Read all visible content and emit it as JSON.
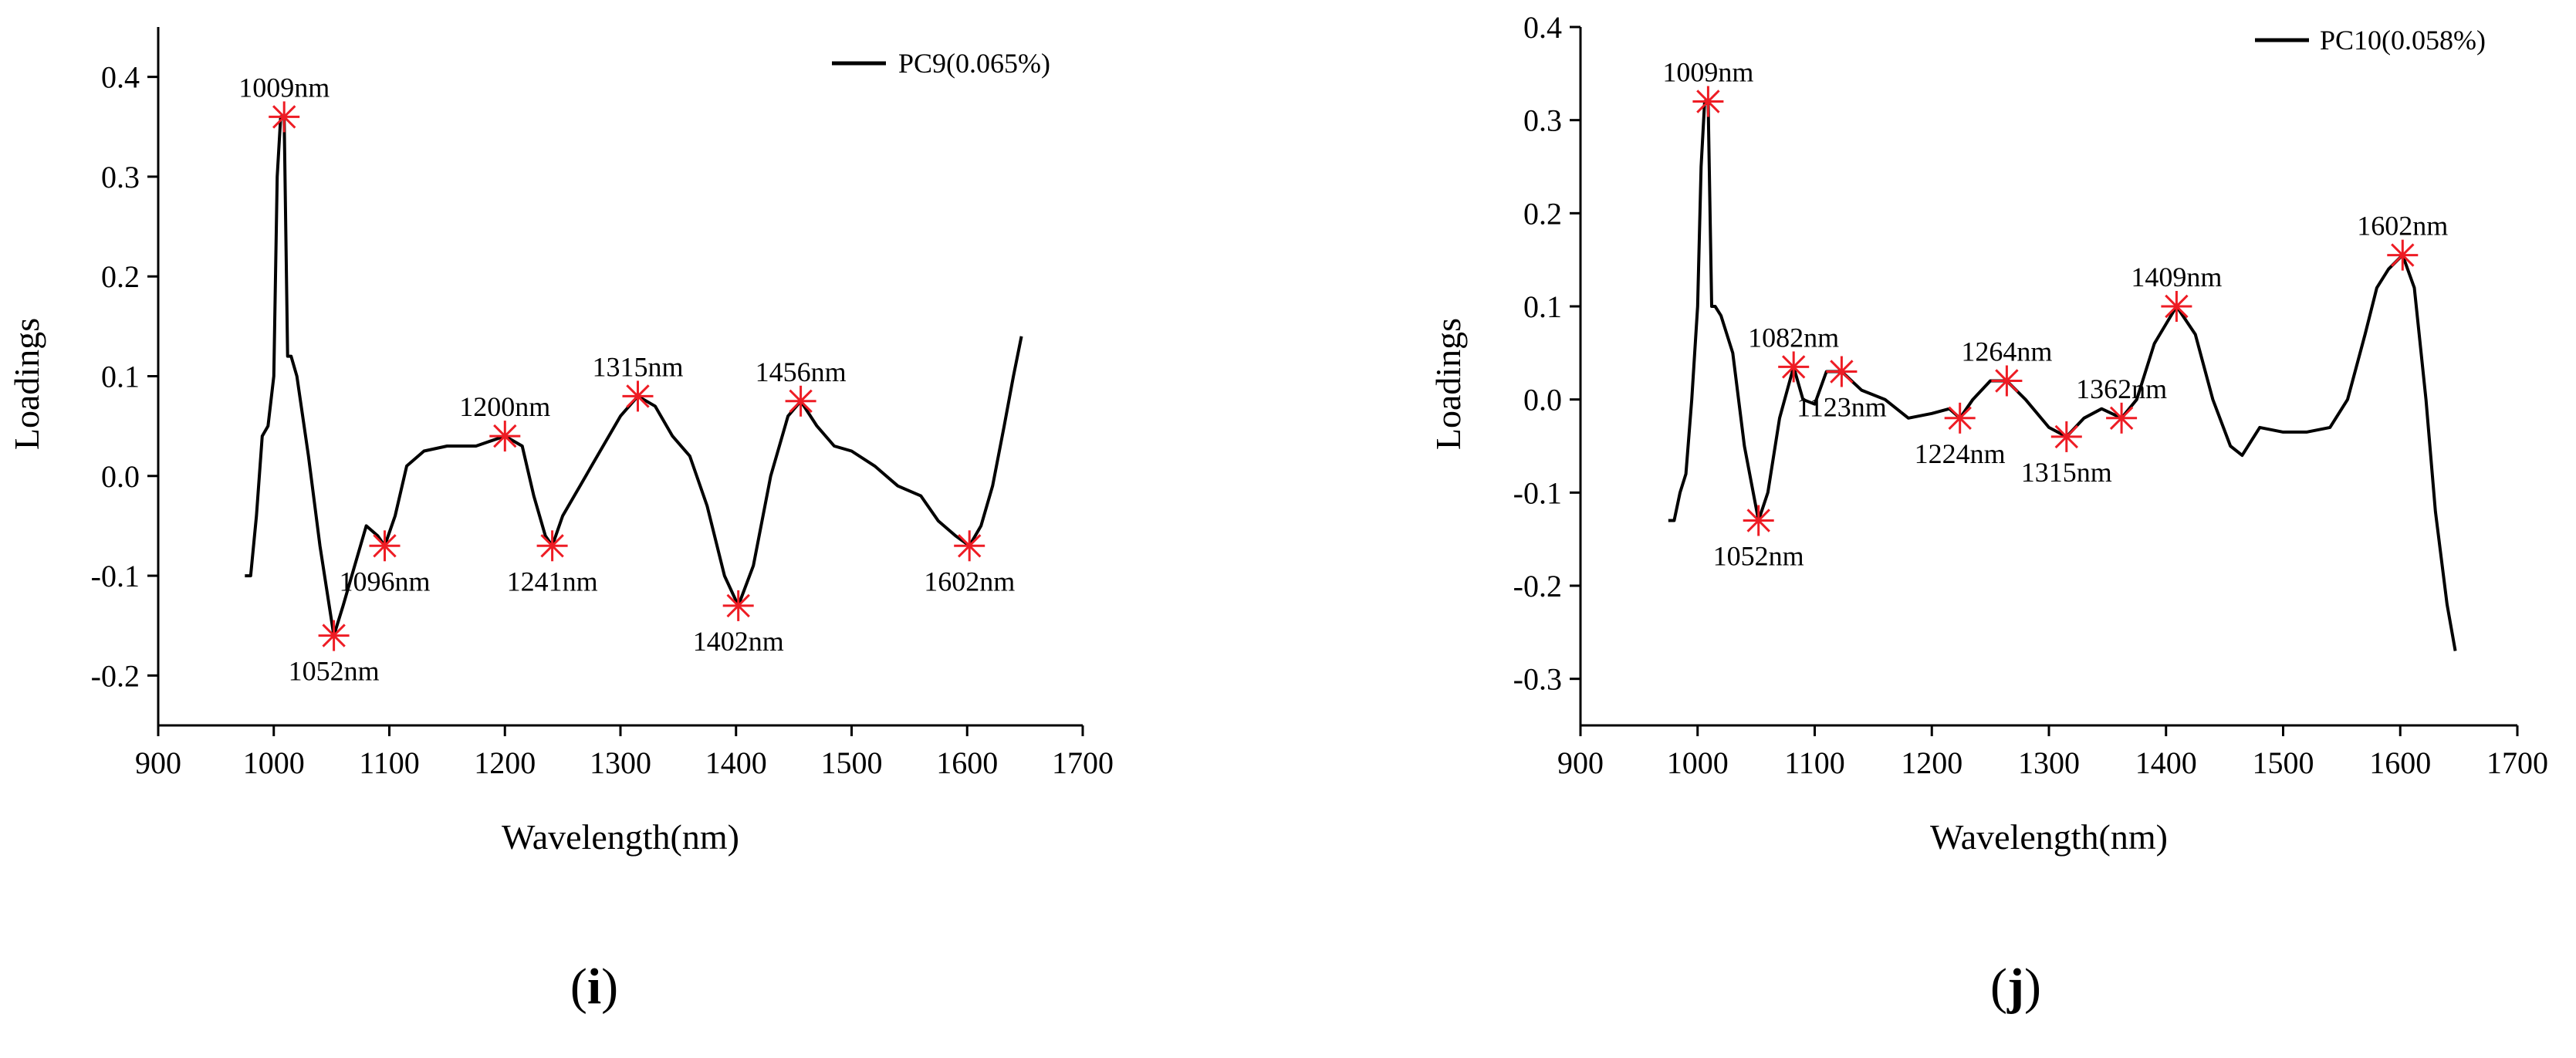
{
  "chart_data": [
    {
      "type": "line",
      "panel_label": "(i)",
      "panel_label_parts": [
        "(",
        "i",
        ")"
      ],
      "legend": "PC9(0.065%)",
      "legend_position": "top-right",
      "xlabel": "Wavelength(nm)",
      "ylabel": "Loadings",
      "xlim": [
        900,
        1700
      ],
      "ylim": [
        -0.25,
        0.45
      ],
      "xticks": [
        900,
        1000,
        1100,
        1200,
        1300,
        1400,
        1500,
        1600,
        1700
      ],
      "yticks": [
        -0.2,
        -0.1,
        0.0,
        0.1,
        0.2,
        0.3,
        0.4
      ],
      "ytick_labels": [
        "-0.2",
        "-0.1",
        "0.0",
        "0.1",
        "0.2",
        "0.3",
        "0.4"
      ],
      "series": [
        {
          "name": "PC9(0.065%)",
          "x": [
            975,
            980,
            985,
            990,
            995,
            1000,
            1003,
            1006,
            1009,
            1012,
            1015,
            1020,
            1030,
            1040,
            1052,
            1060,
            1070,
            1080,
            1090,
            1096,
            1105,
            1115,
            1130,
            1150,
            1175,
            1200,
            1215,
            1225,
            1235,
            1241,
            1250,
            1265,
            1280,
            1300,
            1315,
            1330,
            1345,
            1360,
            1375,
            1390,
            1402,
            1415,
            1430,
            1445,
            1456,
            1470,
            1485,
            1500,
            1520,
            1540,
            1560,
            1575,
            1590,
            1602,
            1612,
            1622,
            1632,
            1640,
            1647
          ],
          "y": [
            -0.1,
            -0.1,
            -0.04,
            0.04,
            0.05,
            0.1,
            0.3,
            0.36,
            0.36,
            0.12,
            0.12,
            0.1,
            0.02,
            -0.07,
            -0.16,
            -0.13,
            -0.09,
            -0.05,
            -0.06,
            -0.07,
            -0.04,
            0.01,
            0.025,
            0.03,
            0.03,
            0.04,
            0.03,
            -0.02,
            -0.06,
            -0.07,
            -0.04,
            -0.01,
            0.02,
            0.06,
            0.08,
            0.07,
            0.04,
            0.02,
            -0.03,
            -0.1,
            -0.13,
            -0.09,
            0.0,
            0.06,
            0.075,
            0.05,
            0.03,
            0.025,
            0.01,
            -0.01,
            -0.02,
            -0.045,
            -0.06,
            -0.07,
            -0.05,
            -0.01,
            0.05,
            0.1,
            0.14
          ]
        }
      ],
      "peaks": [
        {
          "x": 1009,
          "y": 0.36,
          "label": "1009nm",
          "pos": "above"
        },
        {
          "x": 1052,
          "y": -0.16,
          "label": "1052nm",
          "pos": "below"
        },
        {
          "x": 1096,
          "y": -0.07,
          "label": "1096nm",
          "pos": "below"
        },
        {
          "x": 1200,
          "y": 0.04,
          "label": "1200nm",
          "pos": "above"
        },
        {
          "x": 1241,
          "y": -0.07,
          "label": "1241nm",
          "pos": "below"
        },
        {
          "x": 1315,
          "y": 0.08,
          "label": "1315nm",
          "pos": "above"
        },
        {
          "x": 1402,
          "y": -0.13,
          "label": "1402nm",
          "pos": "below"
        },
        {
          "x": 1456,
          "y": 0.075,
          "label": "1456nm",
          "pos": "above"
        },
        {
          "x": 1602,
          "y": -0.07,
          "label": "1602nm",
          "pos": "below"
        }
      ]
    },
    {
      "type": "line",
      "panel_label": "(j)",
      "panel_label_parts": [
        "(",
        "j",
        ")"
      ],
      "legend": "PC10(0.058%)",
      "legend_position": "top-right",
      "xlabel": "Wavelength(nm)",
      "ylabel": "Loadings",
      "xlim": [
        900,
        1700
      ],
      "ylim": [
        -0.35,
        0.4
      ],
      "xticks": [
        900,
        1000,
        1100,
        1200,
        1300,
        1400,
        1500,
        1600,
        1700
      ],
      "yticks": [
        -0.3,
        -0.2,
        -0.1,
        0.0,
        0.1,
        0.2,
        0.3,
        0.4
      ],
      "ytick_labels": [
        "-0.3",
        "-0.2",
        "-0.1",
        "0.0",
        "0.1",
        "0.2",
        "0.3",
        "0.4"
      ],
      "series": [
        {
          "name": "PC10(0.058%)",
          "x": [
            975,
            980,
            985,
            990,
            995,
            1000,
            1003,
            1006,
            1009,
            1012,
            1015,
            1020,
            1030,
            1040,
            1052,
            1060,
            1070,
            1082,
            1090,
            1100,
            1110,
            1123,
            1140,
            1160,
            1180,
            1200,
            1215,
            1224,
            1235,
            1250,
            1264,
            1280,
            1300,
            1315,
            1330,
            1345,
            1362,
            1375,
            1390,
            1409,
            1425,
            1440,
            1455,
            1465,
            1480,
            1500,
            1520,
            1540,
            1555,
            1570,
            1580,
            1590,
            1602,
            1612,
            1622,
            1630,
            1640,
            1647
          ],
          "y": [
            -0.13,
            -0.13,
            -0.1,
            -0.08,
            0.0,
            0.1,
            0.25,
            0.32,
            0.32,
            0.1,
            0.1,
            0.09,
            0.05,
            -0.05,
            -0.13,
            -0.1,
            -0.02,
            0.035,
            0.0,
            -0.005,
            0.03,
            0.03,
            0.01,
            0.0,
            -0.02,
            -0.015,
            -0.01,
            -0.02,
            0.0,
            0.02,
            0.02,
            0.0,
            -0.03,
            -0.04,
            -0.02,
            -0.01,
            -0.02,
            0.0,
            0.06,
            0.1,
            0.07,
            0.0,
            -0.05,
            -0.06,
            -0.03,
            -0.035,
            -0.035,
            -0.03,
            0.0,
            0.07,
            0.12,
            0.14,
            0.155,
            0.12,
            0.0,
            -0.12,
            -0.22,
            -0.27
          ]
        }
      ],
      "peaks": [
        {
          "x": 1009,
          "y": 0.32,
          "label": "1009nm",
          "pos": "above"
        },
        {
          "x": 1052,
          "y": -0.13,
          "label": "1052nm",
          "pos": "below"
        },
        {
          "x": 1082,
          "y": 0.035,
          "label": "1082nm",
          "pos": "above"
        },
        {
          "x": 1123,
          "y": 0.03,
          "label": "1123nm",
          "pos": "below"
        },
        {
          "x": 1224,
          "y": -0.02,
          "label": "1224nm",
          "pos": "below"
        },
        {
          "x": 1264,
          "y": 0.02,
          "label": "1264nm",
          "pos": "above"
        },
        {
          "x": 1315,
          "y": -0.04,
          "label": "1315nm",
          "pos": "below"
        },
        {
          "x": 1362,
          "y": -0.02,
          "label": "1362nm",
          "pos": "above"
        },
        {
          "x": 1409,
          "y": 0.1,
          "label": "1409nm",
          "pos": "above"
        },
        {
          "x": 1602,
          "y": 0.155,
          "label": "1602nm",
          "pos": "above"
        }
      ]
    }
  ]
}
